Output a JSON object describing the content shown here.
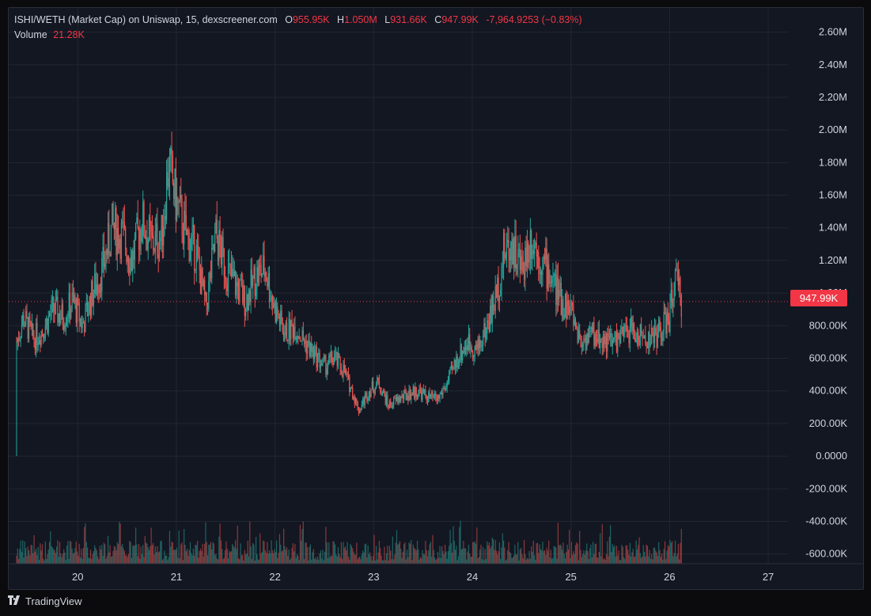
{
  "legend": {
    "title": "ISHI/WETH (Market Cap) on Uniswap, 15, dexscreener.com",
    "o_label": "O",
    "o_value": "955.95K",
    "h_label": "H",
    "h_value": "1.050M",
    "l_label": "L",
    "l_value": "931.66K",
    "c_label": "C",
    "c_value": "947.99K",
    "change": "-7,964.9253 (−0.83%)",
    "volume_label": "Volume",
    "volume_value": "21.28K"
  },
  "price_tag": "947.99K",
  "footer": {
    "logo_icon": "tradingview-logo-icon",
    "brand": "TradingView"
  },
  "colors": {
    "up": "#26a69a",
    "down": "#ef5350",
    "background": "#131722",
    "grid": "#232632",
    "text": "#d1d4dc",
    "last_price": "#f23645"
  },
  "chart_data": {
    "type": "candlestick",
    "title": "ISHI/WETH (Market Cap) on Uniswap, 15, dexscreener.com",
    "interval": "15",
    "y_axis": {
      "position": "right",
      "ticks": [
        2600000,
        2400000,
        2200000,
        2000000,
        1800000,
        1600000,
        1400000,
        1200000,
        1000000,
        800000,
        600000,
        400000,
        200000,
        0,
        -200000,
        -400000,
        -600000
      ],
      "tick_labels": [
        "2.60M",
        "2.40M",
        "2.20M",
        "2.00M",
        "1.80M",
        "1.60M",
        "1.40M",
        "1.20M",
        "1.00M",
        "800.00K",
        "600.00K",
        "400.00K",
        "200.00K",
        "0.0000",
        "-200.00K",
        "-400.00K",
        "-600.00K"
      ],
      "range": [
        -660000,
        2700000
      ]
    },
    "x_axis": {
      "tick_values": [
        20,
        21,
        22,
        23,
        24,
        25,
        26,
        27
      ],
      "tick_labels": [
        "20",
        "21",
        "22",
        "23",
        "24",
        "25",
        "26",
        "27"
      ],
      "range": [
        19.3,
        27.2
      ]
    },
    "last_price": 947990,
    "grid": true,
    "price_path": {
      "x": [
        19.38,
        19.45,
        19.55,
        19.65,
        19.75,
        19.85,
        19.95,
        20.05,
        20.15,
        20.25,
        20.35,
        20.45,
        20.55,
        20.65,
        20.75,
        20.85,
        20.92,
        21.0,
        21.1,
        21.2,
        21.3,
        21.4,
        21.5,
        21.6,
        21.7,
        21.8,
        21.9,
        22.0,
        22.1,
        22.2,
        22.3,
        22.4,
        22.5,
        22.6,
        22.7,
        22.78,
        22.85,
        22.95,
        23.05,
        23.15,
        23.25,
        23.35,
        23.45,
        23.55,
        23.65,
        23.75,
        23.85,
        23.95,
        24.05,
        24.15,
        24.25,
        24.32,
        24.4,
        24.5,
        24.6,
        24.7,
        24.8,
        24.9,
        25.0,
        25.1,
        25.2,
        25.3,
        25.4,
        25.5,
        25.6,
        25.7,
        25.8,
        25.9,
        26.0,
        26.05,
        26.12
      ],
      "close": [
        700000,
        850000,
        720000,
        780000,
        900000,
        850000,
        950000,
        800000,
        1000000,
        1150000,
        1400000,
        1350000,
        1200000,
        1450000,
        1300000,
        1350000,
        1800000,
        1550000,
        1350000,
        1250000,
        900000,
        1350000,
        1150000,
        1050000,
        950000,
        1100000,
        1150000,
        900000,
        750000,
        800000,
        700000,
        620000,
        550000,
        600000,
        520000,
        400000,
        280000,
        400000,
        450000,
        310000,
        350000,
        380000,
        400000,
        360000,
        350000,
        450000,
        600000,
        700000,
        650000,
        800000,
        1000000,
        1250000,
        1300000,
        1150000,
        1350000,
        1200000,
        1100000,
        950000,
        900000,
        700000,
        750000,
        720000,
        700000,
        720000,
        780000,
        730000,
        720000,
        760000,
        850000,
        1100000,
        947990
      ],
      "high_approx": 2100000,
      "low_approx": 0
    },
    "volume": {
      "last_label": "21.28K",
      "note": "volume bars along bottom"
    }
  }
}
